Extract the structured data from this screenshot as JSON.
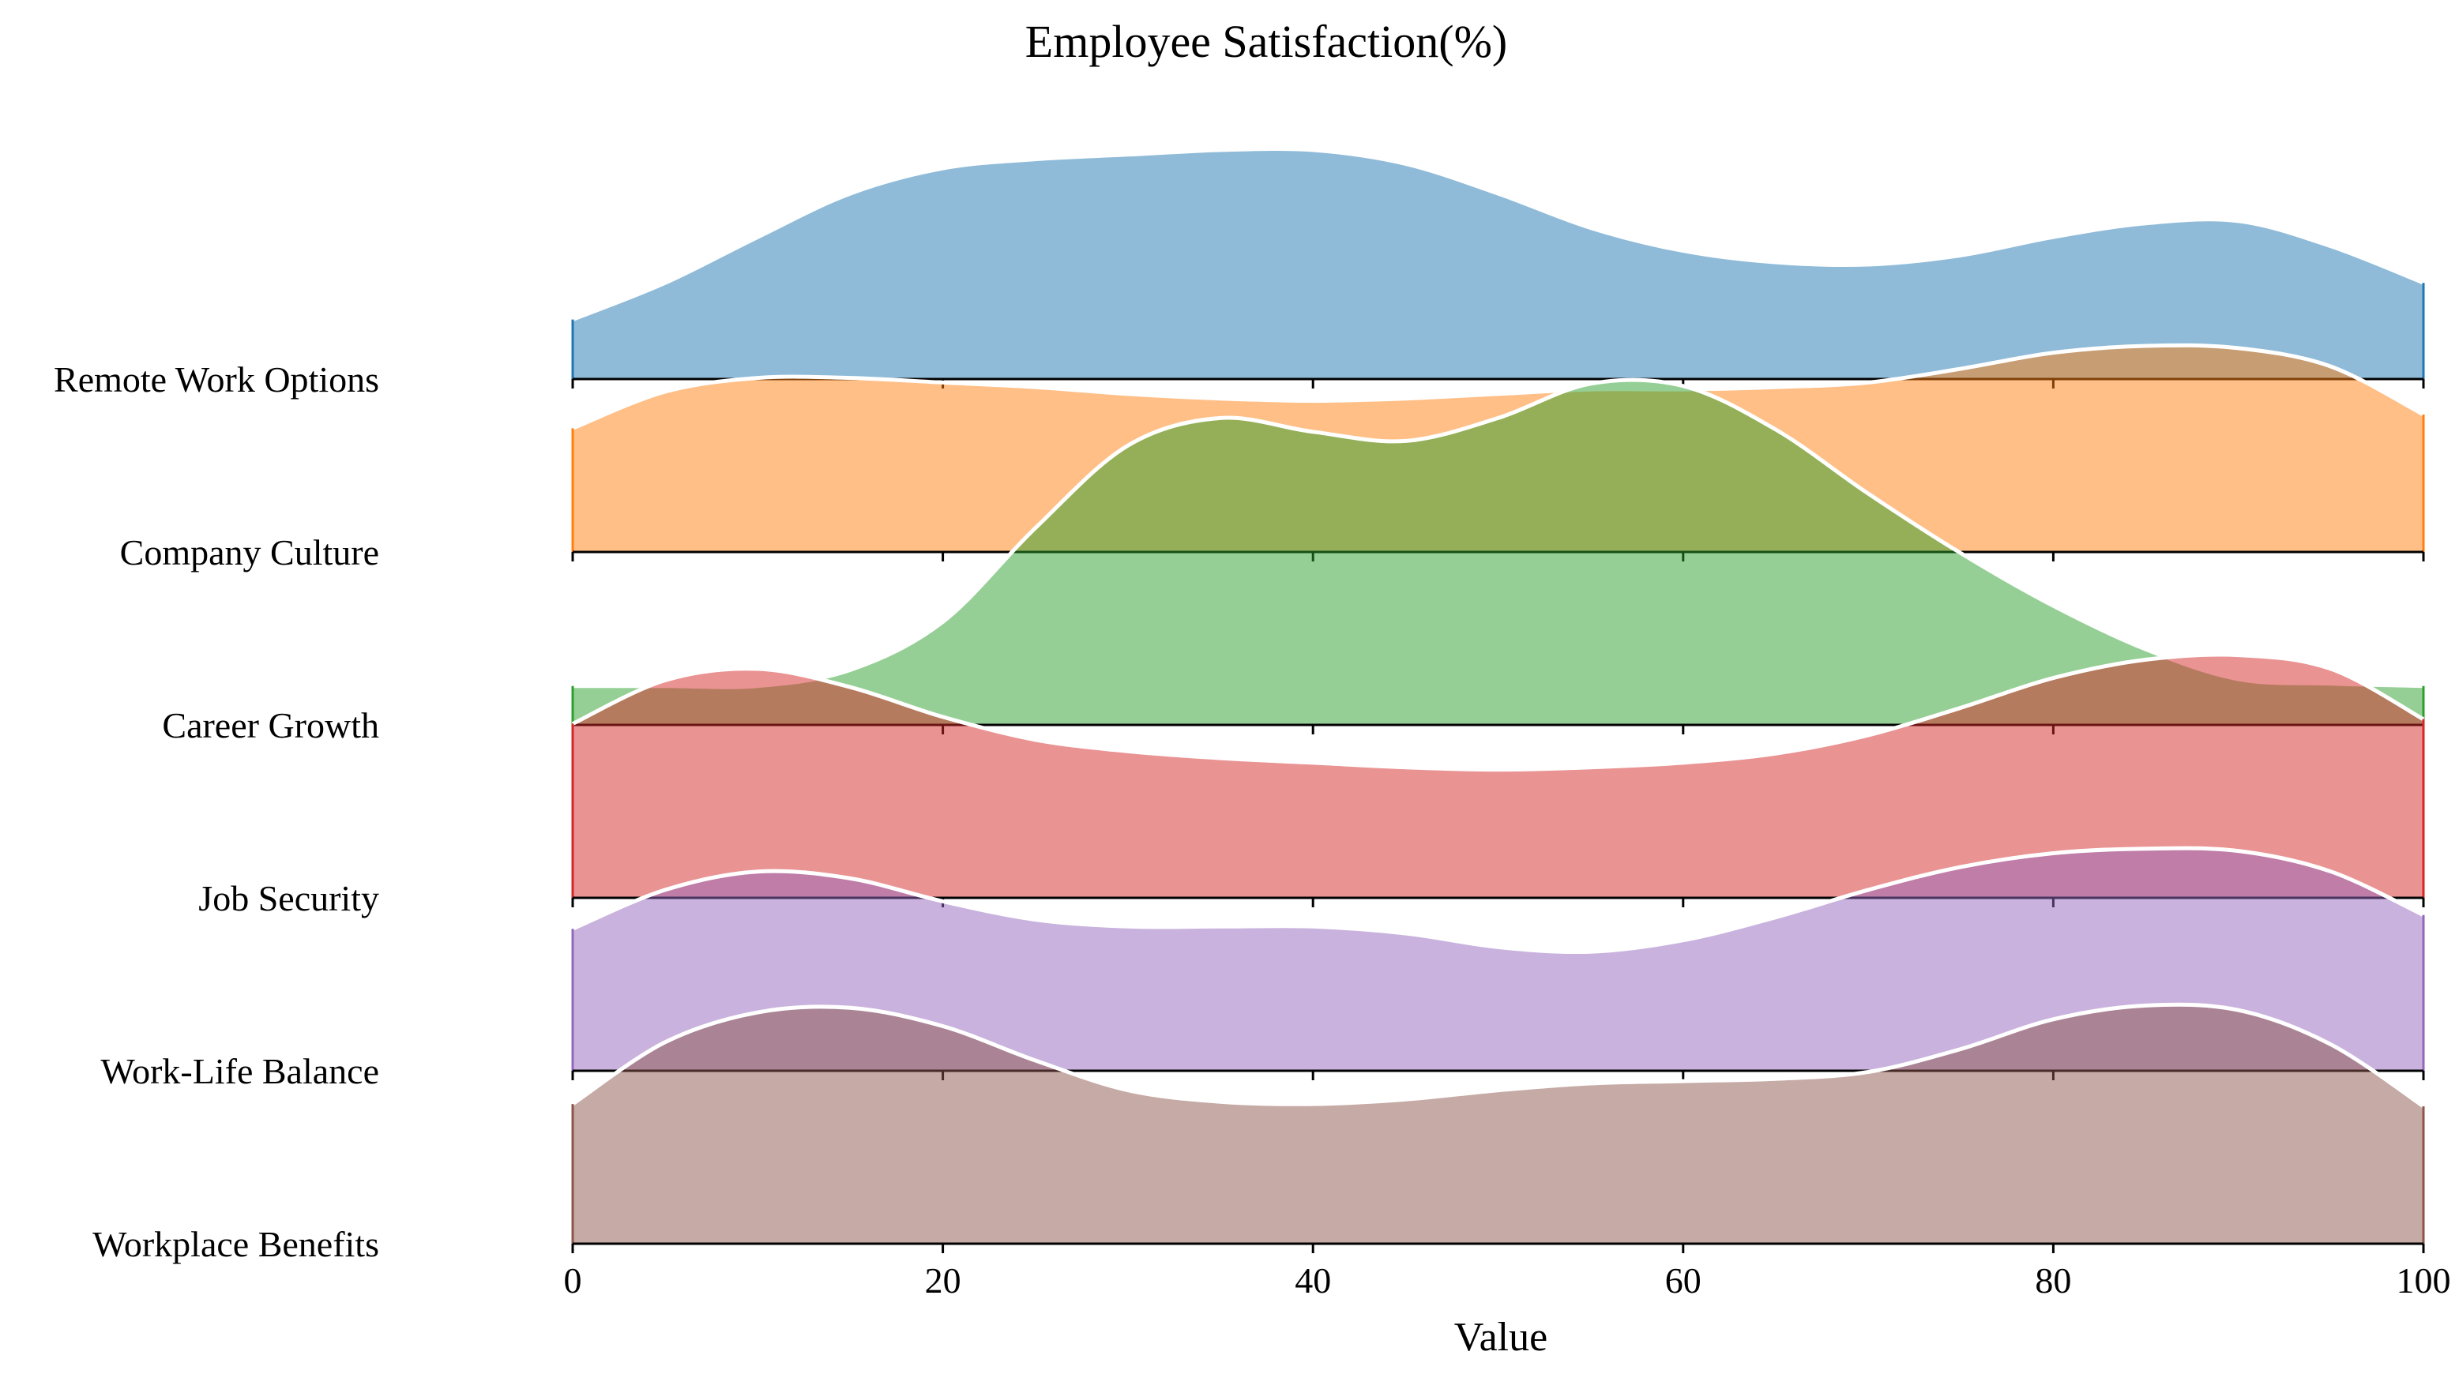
{
  "chart_data": {
    "type": "ridgeline",
    "title": "Employee Satisfaction(%)",
    "xlabel": "Value",
    "xlim": [
      0,
      100
    ],
    "x_ticks": [
      0,
      20,
      40,
      60,
      80,
      100
    ],
    "grid": false,
    "overlap": true,
    "series": [
      {
        "name": "Remote Work Options",
        "color": "#1f77b4",
        "x": [
          0,
          5,
          10,
          15,
          20,
          25,
          30,
          35,
          40,
          45,
          50,
          55,
          60,
          65,
          70,
          75,
          80,
          85,
          90,
          95,
          100
        ],
        "density": [
          0.26,
          0.42,
          0.62,
          0.81,
          0.92,
          0.96,
          0.98,
          1.0,
          1.0,
          0.94,
          0.81,
          0.66,
          0.56,
          0.51,
          0.5,
          0.54,
          0.62,
          0.68,
          0.69,
          0.58,
          0.42
        ]
      },
      {
        "name": "Company Culture",
        "color": "#ff7f0e",
        "x": [
          0,
          5,
          10,
          15,
          20,
          25,
          30,
          35,
          40,
          45,
          50,
          55,
          60,
          65,
          70,
          75,
          80,
          85,
          90,
          95,
          100
        ],
        "density": [
          0.54,
          0.7,
          0.76,
          0.76,
          0.74,
          0.72,
          0.69,
          0.67,
          0.66,
          0.67,
          0.69,
          0.71,
          0.71,
          0.72,
          0.74,
          0.8,
          0.87,
          0.9,
          0.89,
          0.81,
          0.6
        ]
      },
      {
        "name": "Career Growth",
        "color": "#2ca02c",
        "x": [
          0,
          5,
          10,
          15,
          20,
          25,
          30,
          35,
          40,
          45,
          50,
          55,
          60,
          65,
          70,
          75,
          80,
          85,
          90,
          95,
          100
        ],
        "density": [
          0.17,
          0.17,
          0.17,
          0.24,
          0.45,
          0.86,
          1.22,
          1.34,
          1.28,
          1.24,
          1.34,
          1.49,
          1.48,
          1.29,
          1.01,
          0.75,
          0.52,
          0.33,
          0.2,
          0.18,
          0.17
        ]
      },
      {
        "name": "Job Security",
        "color": "#d62728",
        "x": [
          0,
          5,
          10,
          15,
          20,
          25,
          30,
          35,
          40,
          45,
          50,
          55,
          60,
          65,
          70,
          75,
          80,
          85,
          90,
          95,
          100
        ],
        "density": [
          0.76,
          0.95,
          1.0,
          0.92,
          0.79,
          0.69,
          0.64,
          0.61,
          0.59,
          0.57,
          0.56,
          0.57,
          0.59,
          0.63,
          0.71,
          0.83,
          0.96,
          1.04,
          1.06,
          1.0,
          0.78
        ]
      },
      {
        "name": "Work-Life Balance",
        "color": "#9467bd",
        "x": [
          0,
          5,
          10,
          15,
          20,
          25,
          30,
          35,
          40,
          45,
          50,
          55,
          60,
          65,
          70,
          75,
          80,
          85,
          90,
          95,
          100
        ],
        "density": [
          0.62,
          0.79,
          0.87,
          0.84,
          0.74,
          0.66,
          0.63,
          0.63,
          0.63,
          0.6,
          0.54,
          0.52,
          0.57,
          0.67,
          0.79,
          0.89,
          0.95,
          0.97,
          0.96,
          0.87,
          0.68
        ]
      },
      {
        "name": "Workplace Benefits",
        "color": "#8c564b",
        "x": [
          0,
          5,
          10,
          15,
          20,
          25,
          30,
          35,
          40,
          45,
          50,
          55,
          60,
          65,
          70,
          75,
          80,
          85,
          90,
          95,
          100
        ],
        "density": [
          0.61,
          0.88,
          1.01,
          1.03,
          0.95,
          0.8,
          0.67,
          0.62,
          0.61,
          0.63,
          0.67,
          0.7,
          0.71,
          0.72,
          0.75,
          0.85,
          0.98,
          1.04,
          1.02,
          0.87,
          0.6
        ]
      }
    ]
  }
}
